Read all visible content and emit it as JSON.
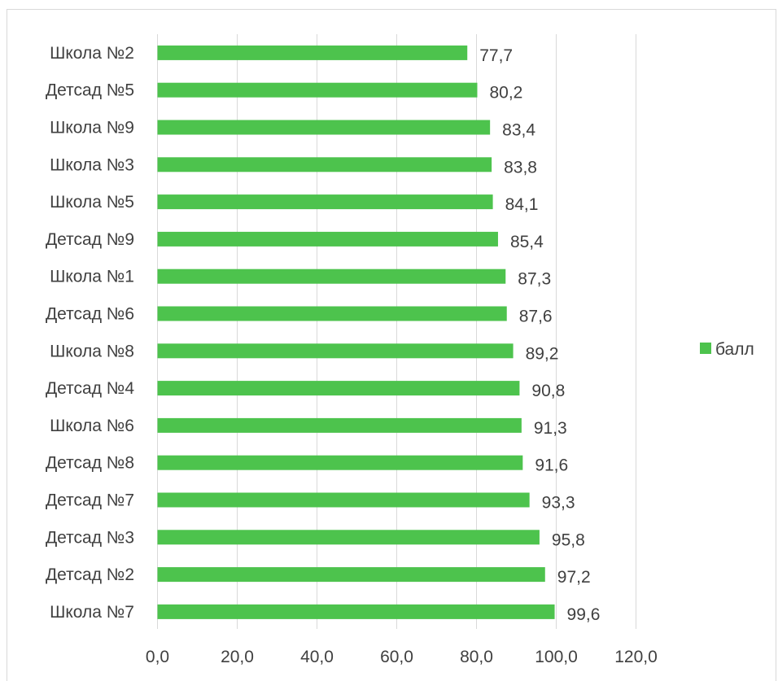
{
  "chart_data": {
    "type": "bar",
    "orientation": "horizontal",
    "categories": [
      "Школа №2",
      "Детсад №5",
      "Школа №9",
      "Школа №3",
      "Школа №5",
      "Детсад №9",
      "Школа №1",
      "Детсад №6",
      "Школа №8",
      "Детсад №4",
      "Школа №6",
      "Детсад №8",
      "Детсад №7",
      "Детсад №3",
      "Детсад №2",
      "Школа №7"
    ],
    "series": [
      {
        "name": "балл",
        "color": "#4dc34d",
        "values": [
          77.7,
          80.2,
          83.4,
          83.8,
          84.1,
          85.4,
          87.3,
          87.6,
          89.2,
          90.8,
          91.3,
          91.6,
          93.3,
          95.8,
          97.2,
          99.6
        ],
        "data_labels": [
          "77,7",
          "80,2",
          "83,4",
          "83,8",
          "84,1",
          "85,4",
          "87,3",
          "87,6",
          "89,2",
          "90,8",
          "91,3",
          "91,6",
          "93,3",
          "95,8",
          "97,2",
          "99,6"
        ]
      }
    ],
    "xlim": [
      0,
      120
    ],
    "x_ticks": [
      0,
      20,
      40,
      60,
      80,
      100,
      120
    ],
    "x_tick_labels": [
      "0,0",
      "20,0",
      "40,0",
      "60,0",
      "80,0",
      "100,0",
      "120,0"
    ],
    "grid": "vertical",
    "legend": "right"
  }
}
